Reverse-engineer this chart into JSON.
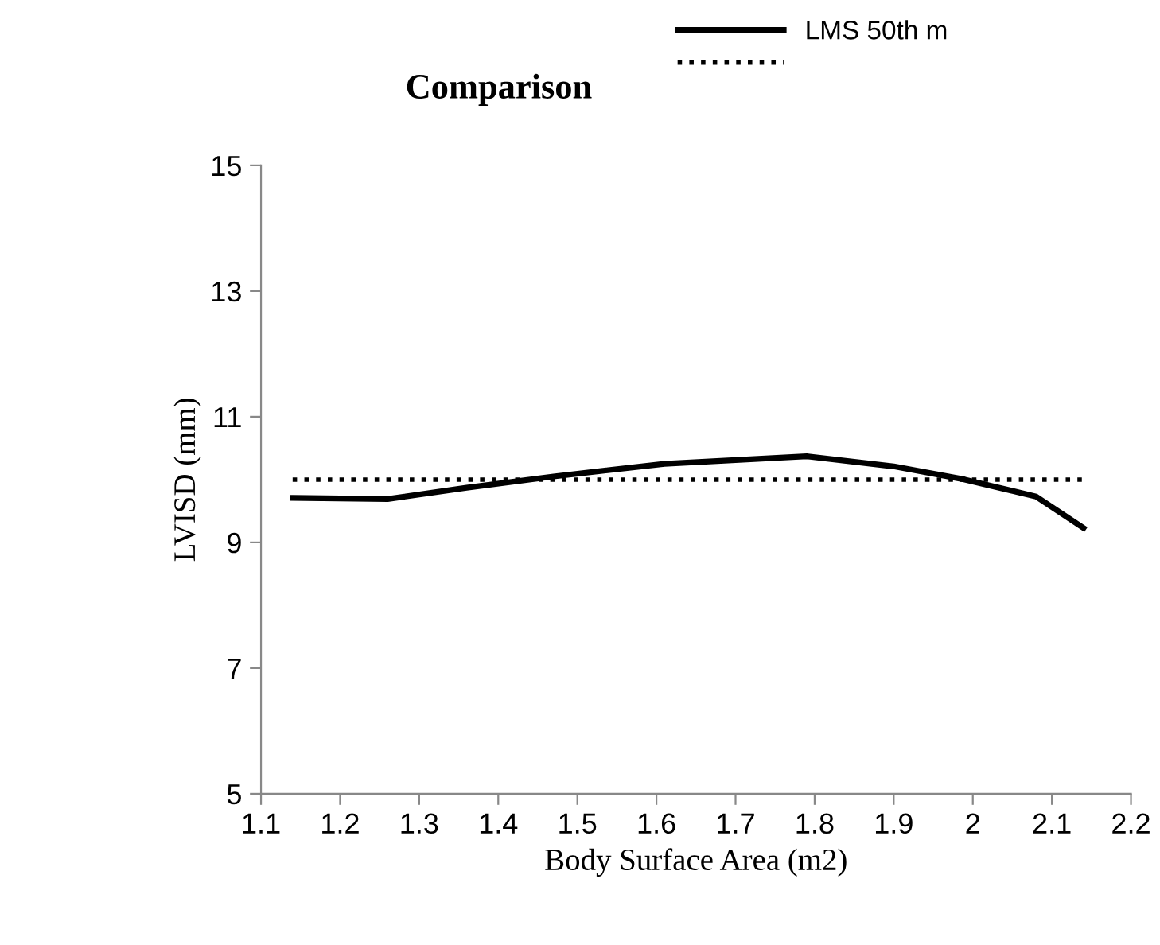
{
  "chart_data": {
    "type": "line",
    "title": "Comparison",
    "xlabel": "Body Surface Area (m2)",
    "ylabel": "LVISD (mm)",
    "series": [
      {
        "name": "LMS 50th m",
        "color": "#000000",
        "line_style": "solid",
        "x": [
          1.14,
          1.26,
          1.36,
          1.47,
          1.61,
          1.79,
          1.9,
          1.99,
          2.08,
          2.14
        ],
        "values": [
          9.71,
          9.69,
          9.87,
          10.05,
          10.25,
          10.37,
          10.21,
          10.0,
          9.73,
          9.23
        ]
      },
      {
        "color": "#000000",
        "line_style": "dotted",
        "x": [
          1.14,
          2.14
        ],
        "values": [
          10.0,
          10.0
        ]
      }
    ],
    "xlim": [
      1.1,
      2.2
    ],
    "xticks": [
      1.1,
      1.2,
      1.3,
      1.4,
      1.5,
      1.6,
      1.7,
      1.8,
      1.9,
      2,
      2.1,
      2.2
    ],
    "ylim": [
      5,
      15
    ],
    "yticks": [
      5,
      7,
      9,
      11,
      13,
      15
    ],
    "grid": false,
    "legend": "top right",
    "marker": "none"
  }
}
